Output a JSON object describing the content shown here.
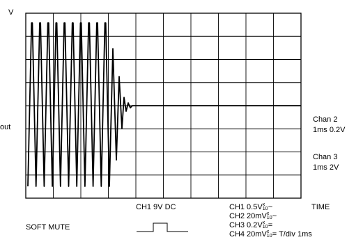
{
  "axis": {
    "y_unit": "V",
    "left_label": "out"
  },
  "traces": [
    {
      "name": "ch2",
      "waveform": "burst-sine-then-dc",
      "full_cycles": 10,
      "decay_cycles": 2
    },
    {
      "name": "ch3",
      "waveform": "flat"
    }
  ],
  "right_labels": {
    "chan2_name": "Chan 2",
    "chan2_setting": "1ms 0.2V",
    "chan3_name": "Chan 3",
    "chan3_setting": "1ms 2V"
  },
  "bottom": {
    "ch1_dc": "CH1 9V DC",
    "time": "TIME",
    "soft_mute": "SOFT MUTE",
    "probe_top": "x",
    "probe_bottom": "10",
    "settings": [
      {
        "label": "CH1 0.5V",
        "suffix": "~"
      },
      {
        "label": "CH2 20mV",
        "suffix": "~"
      },
      {
        "label": "CH3 0.2V",
        "suffix": "="
      },
      {
        "label": "CH4 20mV",
        "suffix": "= T/div 1ms"
      }
    ]
  },
  "colors": {
    "grid": "#000000",
    "trace": "#000000",
    "background": "#ffffff"
  }
}
